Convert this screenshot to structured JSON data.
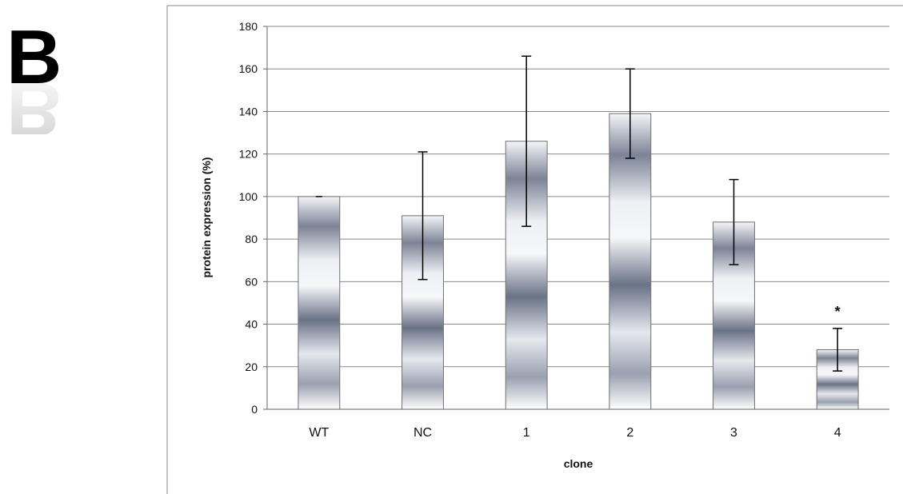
{
  "panel_label": "B",
  "chart_data": {
    "type": "bar",
    "categories": [
      "WT",
      "NC",
      "1",
      "2",
      "3",
      "4"
    ],
    "values": [
      100,
      91,
      126,
      139,
      88,
      28
    ],
    "error": [
      0,
      30,
      40,
      21,
      20,
      10
    ],
    "annotations": [
      {
        "category": "4",
        "text": "*"
      }
    ],
    "xlabel": "clone",
    "ylabel": "protein expression (%)",
    "ylim": [
      0,
      180
    ],
    "yticks": [
      0,
      20,
      40,
      60,
      80,
      100,
      120,
      140,
      160,
      180
    ],
    "grid": true,
    "legend": "none"
  }
}
